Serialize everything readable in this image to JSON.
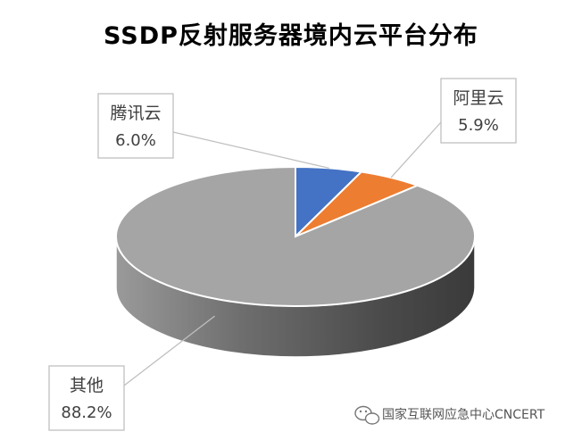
{
  "chart_data": {
    "type": "pie",
    "title": "SSDP反射服务器境内云平台分布",
    "slices": [
      {
        "label": "腾讯云",
        "value": 6.0,
        "value_label": "6.0%",
        "color": "#4472C4"
      },
      {
        "label": "阿里云",
        "value": 5.9,
        "value_label": "5.9%",
        "color": "#ED7D31"
      },
      {
        "label": "其他",
        "value": 88.2,
        "value_label": "88.2%",
        "color": "#A5A5A5"
      }
    ],
    "style": "3d-pie",
    "legend": "none"
  },
  "watermark": {
    "text": "国家互联网应急中心CNCERT",
    "icon": "wechat-icon"
  }
}
